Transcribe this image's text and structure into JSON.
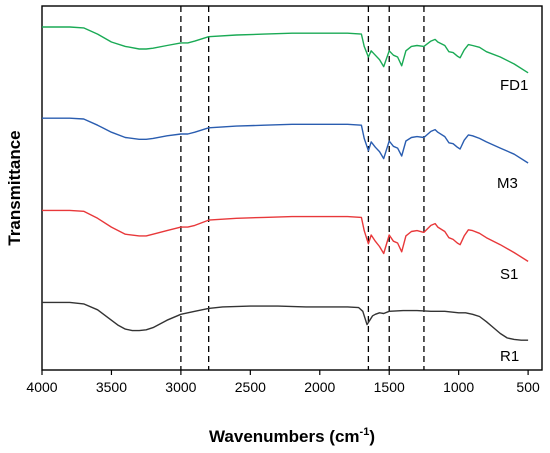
{
  "chart_data": {
    "type": "line",
    "xlabel": "Wavenumbers (cm",
    "xlabel_sup": "-1",
    "xlabel_close": ")",
    "ylabel": "Transmittance",
    "xlim": [
      4000,
      400
    ],
    "x_ticks": [
      4000,
      3500,
      3000,
      2500,
      2000,
      1500,
      1000,
      500
    ],
    "reference_lines": [
      3000,
      2800,
      1650,
      1500,
      1250
    ],
    "series": [
      {
        "name": "FD1",
        "color": "#1aaa55",
        "x": [
          4000,
          3800,
          3700,
          3600,
          3500,
          3400,
          3300,
          3250,
          3200,
          3100,
          3000,
          2950,
          2900,
          2800,
          2600,
          2400,
          2200,
          2000,
          1800,
          1700,
          1680,
          1650,
          1630,
          1600,
          1570,
          1540,
          1500,
          1470,
          1440,
          1410,
          1380,
          1340,
          1300,
          1250,
          1200,
          1170,
          1150,
          1100,
          1070,
          1040,
          1010,
          990,
          960,
          930,
          900,
          850,
          800,
          700,
          600,
          500
        ],
        "y": [
          92,
          92,
          91,
          84,
          75,
          70,
          67,
          67,
          68,
          71,
          74,
          74,
          76,
          81,
          83,
          84,
          85,
          85,
          85,
          84,
          70,
          58,
          65,
          60,
          55,
          47,
          65,
          60,
          58,
          48,
          65,
          70,
          71,
          70,
          76,
          78,
          75,
          71,
          64,
          63,
          59,
          57,
          66,
          72,
          71,
          69,
          64,
          58,
          50,
          40
        ]
      },
      {
        "name": "M3",
        "color": "#2a5db0",
        "x": [
          4000,
          3800,
          3700,
          3600,
          3500,
          3400,
          3300,
          3250,
          3200,
          3100,
          3000,
          2950,
          2900,
          2800,
          2600,
          2400,
          2200,
          2000,
          1800,
          1700,
          1680,
          1650,
          1630,
          1600,
          1570,
          1540,
          1500,
          1470,
          1440,
          1410,
          1380,
          1340,
          1300,
          1250,
          1200,
          1170,
          1150,
          1100,
          1070,
          1040,
          1010,
          990,
          960,
          930,
          900,
          850,
          800,
          700,
          600,
          500
        ],
        "y": [
          93,
          93,
          92,
          85,
          77,
          71,
          69,
          69,
          70,
          73,
          75,
          75,
          77,
          82,
          84,
          85,
          86,
          86,
          86,
          85,
          70,
          56,
          66,
          60,
          55,
          47,
          67,
          61,
          59,
          50,
          67,
          71,
          72,
          71,
          78,
          80,
          77,
          72,
          65,
          64,
          60,
          58,
          68,
          74,
          73,
          70,
          66,
          59,
          52,
          42
        ]
      },
      {
        "name": "S1",
        "color": "#e8383a",
        "x": [
          4000,
          3800,
          3700,
          3600,
          3500,
          3400,
          3300,
          3250,
          3200,
          3100,
          3000,
          2950,
          2900,
          2800,
          2600,
          2400,
          2200,
          2000,
          1800,
          1700,
          1680,
          1650,
          1630,
          1600,
          1570,
          1540,
          1500,
          1470,
          1440,
          1410,
          1380,
          1340,
          1300,
          1250,
          1200,
          1170,
          1150,
          1100,
          1070,
          1040,
          1010,
          990,
          960,
          930,
          900,
          850,
          800,
          700,
          600,
          500
        ],
        "y": [
          95,
          95,
          94,
          86,
          76,
          68,
          66,
          66,
          68,
          72,
          76,
          76,
          78,
          84,
          86,
          87,
          88,
          88,
          88,
          87,
          72,
          57,
          67,
          60,
          54,
          46,
          67,
          60,
          58,
          48,
          66,
          71,
          72,
          70,
          78,
          80,
          76,
          71,
          64,
          62,
          58,
          56,
          66,
          73,
          72,
          69,
          64,
          56,
          47,
          37
        ]
      },
      {
        "name": "R1",
        "color": "#333333",
        "x": [
          4000,
          3800,
          3700,
          3600,
          3500,
          3450,
          3400,
          3350,
          3300,
          3250,
          3200,
          3100,
          3000,
          2950,
          2900,
          2800,
          2700,
          2500,
          2300,
          2100,
          1900,
          1800,
          1720,
          1690,
          1660,
          1640,
          1620,
          1600,
          1570,
          1540,
          1500,
          1400,
          1300,
          1200,
          1100,
          1000,
          950,
          900,
          850,
          800,
          750,
          700,
          650,
          600,
          550,
          500
        ],
        "y": [
          94,
          94,
          92,
          84,
          70,
          63,
          58,
          56,
          56,
          57,
          60,
          70,
          78,
          80,
          82,
          86,
          88,
          89,
          89,
          88,
          88,
          88,
          87,
          82,
          64,
          70,
          76,
          78,
          80,
          79,
          82,
          83,
          83,
          82,
          82,
          80,
          80,
          78,
          75,
          68,
          60,
          52,
          46,
          44,
          43,
          43
        ]
      }
    ]
  }
}
